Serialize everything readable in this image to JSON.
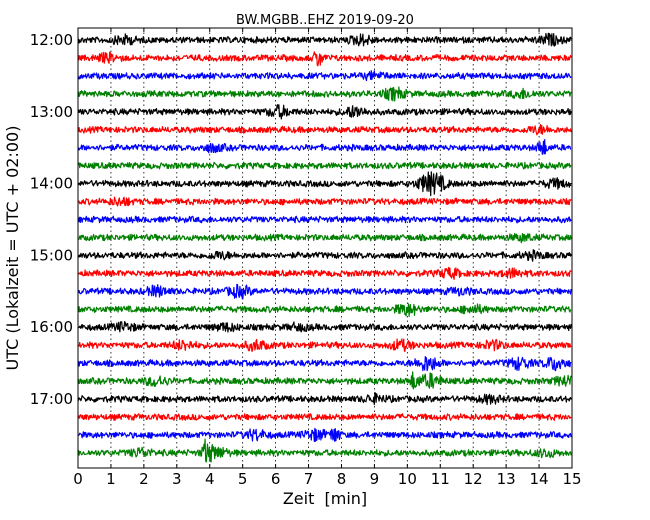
{
  "chart_data": {
    "type": "line",
    "title": "BW.MGBB..EHZ 2019-09-20",
    "xlabel": "Zeit  [min]",
    "ylabel": "UTC (Lokalzeit = UTC + 02:00)",
    "xlim": [
      0,
      15
    ],
    "x_ticks": [
      0,
      1,
      2,
      3,
      4,
      5,
      6,
      7,
      8,
      9,
      10,
      11,
      12,
      13,
      14,
      15
    ],
    "x_tick_labels": [
      "0",
      "1",
      "2",
      "3",
      "4",
      "5",
      "6",
      "7",
      "8",
      "9",
      "10",
      "11",
      "12",
      "13",
      "14",
      "15"
    ],
    "y_tick_labels": [
      "12:00",
      "13:00",
      "14:00",
      "15:00",
      "16:00",
      "17:00"
    ],
    "y_tick_trace_index": [
      0,
      4,
      8,
      12,
      16,
      20
    ],
    "grid": "vertical dotted lines at each minute",
    "trace_interval_min": 15,
    "color_cycle": [
      "#000000",
      "#ff0000",
      "#0000ff",
      "#008000"
    ],
    "series": [
      {
        "start": "12:00",
        "color": "#000000",
        "events": [
          {
            "x": 1.4,
            "amp": 0.45
          },
          {
            "x": 8.6,
            "amp": 0.5
          },
          {
            "x": 14.3,
            "amp": 0.5
          }
        ]
      },
      {
        "start": "12:15",
        "color": "#ff0000",
        "events": [
          {
            "x": 0.9,
            "amp": 0.4
          },
          {
            "x": 7.3,
            "amp": 1.0
          }
        ]
      },
      {
        "start": "12:30",
        "color": "#0000ff",
        "events": [
          {
            "x": 9.0,
            "amp": 0.3
          }
        ]
      },
      {
        "start": "12:45",
        "color": "#008000",
        "events": [
          {
            "x": 9.6,
            "amp": 0.6
          },
          {
            "x": 13.5,
            "amp": 0.4
          }
        ]
      },
      {
        "start": "13:00",
        "color": "#000000",
        "events": [
          {
            "x": 6.1,
            "amp": 0.6
          },
          {
            "x": 8.4,
            "amp": 0.55
          }
        ]
      },
      {
        "start": "13:15",
        "color": "#ff0000",
        "events": [
          {
            "x": 14.0,
            "amp": 0.35
          }
        ]
      },
      {
        "start": "13:30",
        "color": "#0000ff",
        "events": [
          {
            "x": 4.1,
            "amp": 0.35
          },
          {
            "x": 14.1,
            "amp": 1.0
          }
        ]
      },
      {
        "start": "13:45",
        "color": "#008000",
        "events": []
      },
      {
        "start": "14:00",
        "color": "#000000",
        "events": [
          {
            "x": 10.6,
            "amp": 0.8
          },
          {
            "x": 10.9,
            "amp": 0.7
          },
          {
            "x": 14.5,
            "amp": 0.4
          }
        ]
      },
      {
        "start": "14:15",
        "color": "#ff0000",
        "events": [
          {
            "x": 1.3,
            "amp": 0.35
          }
        ]
      },
      {
        "start": "14:30",
        "color": "#0000ff",
        "events": []
      },
      {
        "start": "14:45",
        "color": "#008000",
        "events": [
          {
            "x": 13.5,
            "amp": 0.3
          }
        ]
      },
      {
        "start": "15:00",
        "color": "#000000",
        "events": [
          {
            "x": 4.3,
            "amp": 0.3
          },
          {
            "x": 13.8,
            "amp": 0.3
          }
        ]
      },
      {
        "start": "15:15",
        "color": "#ff0000",
        "events": [
          {
            "x": 11.3,
            "amp": 0.45
          },
          {
            "x": 13.2,
            "amp": 0.4
          }
        ]
      },
      {
        "start": "15:30",
        "color": "#0000ff",
        "events": [
          {
            "x": 2.4,
            "amp": 0.5
          },
          {
            "x": 4.9,
            "amp": 0.6
          },
          {
            "x": 11.6,
            "amp": 0.3
          }
        ]
      },
      {
        "start": "15:45",
        "color": "#008000",
        "events": [
          {
            "x": 10.0,
            "amp": 0.6
          },
          {
            "x": 12.0,
            "amp": 0.4
          }
        ]
      },
      {
        "start": "16:00",
        "color": "#000000",
        "events": [
          {
            "x": 1.4,
            "amp": 0.4
          },
          {
            "x": 4.5,
            "amp": 0.35
          },
          {
            "x": 6.7,
            "amp": 0.3
          }
        ]
      },
      {
        "start": "16:15",
        "color": "#ff0000",
        "events": [
          {
            "x": 3.2,
            "amp": 0.45
          },
          {
            "x": 5.4,
            "amp": 0.5
          },
          {
            "x": 9.8,
            "amp": 0.5
          },
          {
            "x": 12.6,
            "amp": 0.4
          }
        ]
      },
      {
        "start": "16:30",
        "color": "#0000ff",
        "events": [
          {
            "x": 10.6,
            "amp": 0.8
          },
          {
            "x": 13.4,
            "amp": 0.6
          },
          {
            "x": 14.5,
            "amp": 0.7
          }
        ]
      },
      {
        "start": "16:45",
        "color": "#008000",
        "events": [
          {
            "x": 2.4,
            "amp": 0.5
          },
          {
            "x": 10.2,
            "amp": 0.9
          },
          {
            "x": 10.7,
            "amp": 0.7
          },
          {
            "x": 14.8,
            "amp": 0.5
          }
        ]
      },
      {
        "start": "17:00",
        "color": "#000000",
        "events": [
          {
            "x": 9.0,
            "amp": 0.4
          },
          {
            "x": 12.5,
            "amp": 0.35
          }
        ]
      },
      {
        "start": "17:15",
        "color": "#ff0000",
        "events": []
      },
      {
        "start": "17:30",
        "color": "#0000ff",
        "events": [
          {
            "x": 5.4,
            "amp": 0.5
          },
          {
            "x": 7.2,
            "amp": 0.55
          },
          {
            "x": 7.8,
            "amp": 0.9
          }
        ]
      },
      {
        "start": "17:45",
        "color": "#008000",
        "events": [
          {
            "x": 1.9,
            "amp": 0.4
          },
          {
            "x": 3.9,
            "amp": 1.3
          },
          {
            "x": 4.2,
            "amp": 0.6
          },
          {
            "x": 14.2,
            "amp": 0.35
          }
        ]
      }
    ]
  }
}
